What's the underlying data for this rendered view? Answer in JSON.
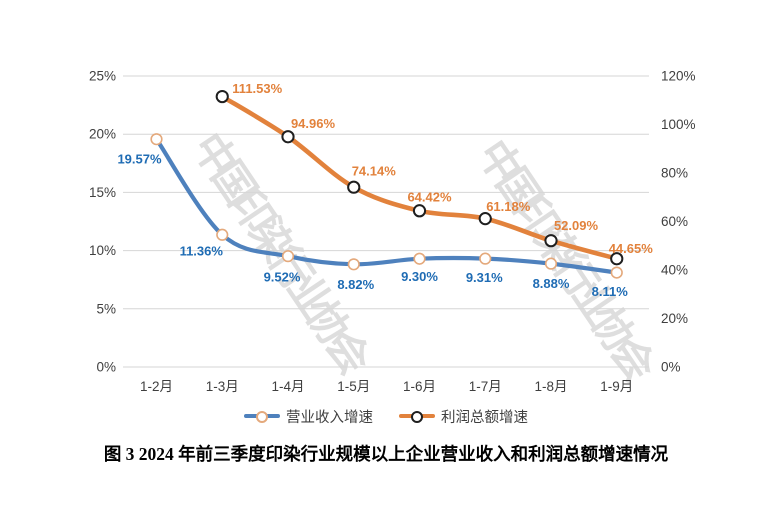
{
  "caption": "图 3 2024 年前三季度印染行业规模以上企业营业收入和利润总额增速情况",
  "watermark": "中国印染行业协会",
  "colors": {
    "gridline": "#D6D6D6",
    "axis_text": "#3F3F3F",
    "revenue_line": "#4E81BD",
    "revenue_label": "#1F6CB4",
    "revenue_marker_ring": "#E4A97C",
    "profit_line": "#E2823C",
    "profit_label": "#E2823C",
    "profit_marker_ring": "#1F1F1F",
    "marker_fill": "#FFFFFF",
    "watermark": "#ABABAB"
  },
  "chart_data": {
    "type": "line",
    "title": "",
    "categories": [
      "1-2月",
      "1-3月",
      "1-4月",
      "1-5月",
      "1-6月",
      "1-7月",
      "1-8月",
      "1-9月"
    ],
    "series": [
      {
        "name": "营业收入增速",
        "axis": "left",
        "values": [
          19.57,
          11.36,
          9.52,
          8.82,
          9.3,
          9.31,
          8.88,
          8.11
        ],
        "labels": [
          "19.57%",
          "11.36%",
          "9.52%",
          "8.82%",
          "9.30%",
          "9.31%",
          "8.88%",
          "8.11%"
        ]
      },
      {
        "name": "利润总额增速",
        "axis": "right",
        "values": [
          null,
          111.53,
          94.96,
          74.14,
          64.42,
          61.18,
          52.09,
          44.65
        ],
        "labels": [
          "",
          "111.53%",
          "94.96%",
          "74.14%",
          "64.42%",
          "61.18%",
          "52.09%",
          "44.65%"
        ]
      }
    ],
    "left_axis": {
      "min": 0,
      "max": 25,
      "ticks": [
        "0%",
        "5%",
        "10%",
        "15%",
        "20%",
        "25%"
      ]
    },
    "right_axis": {
      "min": 0,
      "max": 120,
      "ticks": [
        "0%",
        "20%",
        "40%",
        "60%",
        "80%",
        "100%",
        "120%"
      ]
    },
    "grid": true,
    "legend_position": "bottom",
    "smoothed": true
  }
}
